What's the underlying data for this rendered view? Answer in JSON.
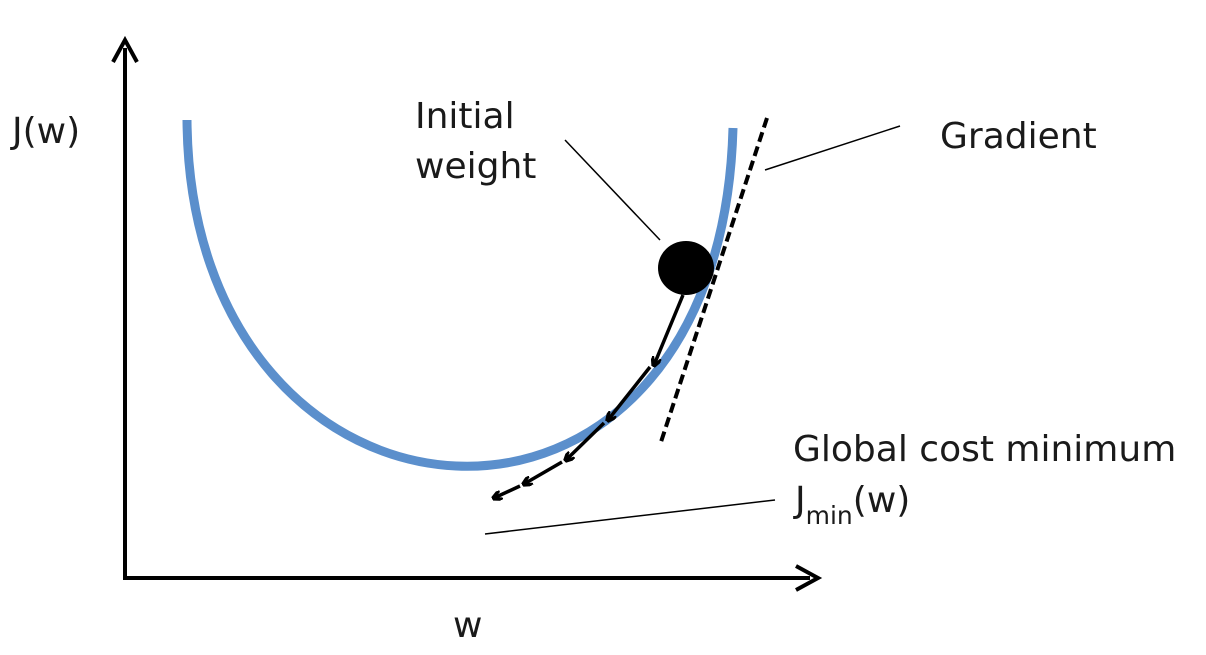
{
  "diagram": {
    "y_axis_label": "J(w)",
    "x_axis_label": "w",
    "initial_weight_line1": "Initial",
    "initial_weight_line2": "weight",
    "gradient_label": "Gradient",
    "global_min_label": "Global cost minimum",
    "jmin_prefix": "J",
    "jmin_subscript": "min",
    "jmin_suffix": "(w)",
    "colors": {
      "curve": "#5b8fcc",
      "ink": "#000000",
      "background": "#ffffff"
    }
  }
}
